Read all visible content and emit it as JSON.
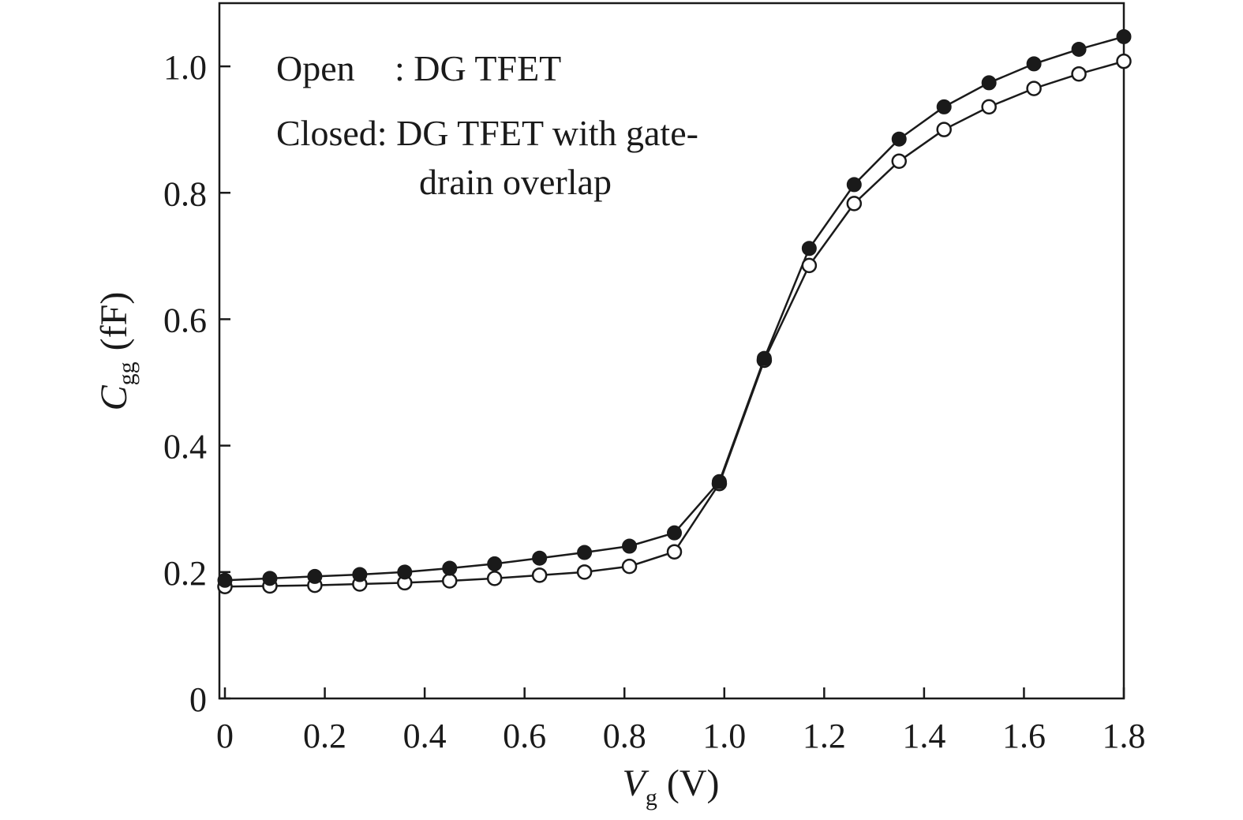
{
  "chart_data": {
    "type": "line",
    "x_axis": {
      "symbol": "V",
      "subscript": "g",
      "unit": "(V)",
      "range": [
        0,
        1.8
      ],
      "ticks": [
        "0",
        "0.2",
        "0.4",
        "0.6",
        "0.8",
        "1.0",
        "1.2",
        "1.4",
        "1.6",
        "1.8"
      ],
      "tick_values": [
        0,
        0.2,
        0.4,
        0.6,
        0.8,
        1.0,
        1.2,
        1.4,
        1.6,
        1.8
      ]
    },
    "y_axis": {
      "symbol": "C",
      "subscript": "gg",
      "unit": "(fF)",
      "range": [
        0,
        1.1
      ],
      "ticks": [
        "0",
        "0.2",
        "0.4",
        "0.6",
        "0.8",
        "1.0"
      ],
      "tick_values": [
        0,
        0.2,
        0.4,
        0.6,
        0.8,
        1.0
      ]
    },
    "legend": {
      "placement": "top-left",
      "lines": [
        {
          "key": "Open",
          "sep": ": ",
          "text": "DG TFET"
        },
        {
          "key": "Closed",
          "sep": ": ",
          "text": "DG TFET with gate-"
        },
        {
          "key": "",
          "sep": "",
          "text": "drain overlap"
        }
      ]
    },
    "grid": false,
    "series": [
      {
        "marker": "open-circle",
        "x": [
          0,
          0.09,
          0.18,
          0.27,
          0.36,
          0.45,
          0.54,
          0.63,
          0.72,
          0.81,
          0.9,
          0.99,
          1.08,
          1.17,
          1.26,
          1.35,
          1.44,
          1.53,
          1.62,
          1.71,
          1.8
        ],
        "y": [
          0.177,
          0.178,
          0.179,
          0.181,
          0.183,
          0.186,
          0.19,
          0.195,
          0.2,
          0.209,
          0.232,
          0.34,
          0.535,
          0.685,
          0.783,
          0.85,
          0.9,
          0.936,
          0.965,
          0.988,
          1.008
        ]
      },
      {
        "marker": "filled-circle",
        "x": [
          0,
          0.09,
          0.18,
          0.27,
          0.36,
          0.45,
          0.54,
          0.63,
          0.72,
          0.81,
          0.9,
          0.99,
          1.08,
          1.17,
          1.26,
          1.35,
          1.44,
          1.53,
          1.62,
          1.71,
          1.8
        ],
        "y": [
          0.187,
          0.19,
          0.193,
          0.196,
          0.2,
          0.206,
          0.213,
          0.222,
          0.231,
          0.241,
          0.262,
          0.343,
          0.538,
          0.712,
          0.813,
          0.885,
          0.936,
          0.974,
          1.004,
          1.027,
          1.047
        ]
      }
    ]
  }
}
